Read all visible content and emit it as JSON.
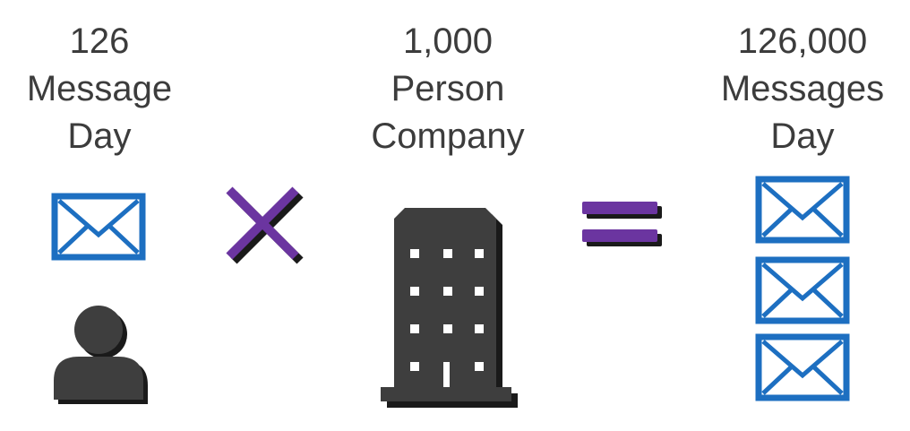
{
  "left": {
    "lines": [
      "126",
      "Message",
      "Day"
    ],
    "icons": [
      "envelope-icon",
      "person-icon"
    ]
  },
  "operator_multiply": {
    "icon": "multiply-icon"
  },
  "middle": {
    "lines": [
      "1,000",
      "Person",
      "Company"
    ],
    "icons": [
      "office-building-icon"
    ]
  },
  "operator_equals": {
    "icon": "equals-icon"
  },
  "right": {
    "lines": [
      "126,000",
      "Messages",
      "Day"
    ],
    "icons": [
      "envelope-icon",
      "envelope-icon",
      "envelope-icon"
    ]
  },
  "colors": {
    "text": "#3c3c3c",
    "envelope": "#1d6fc1",
    "operator": "#6b35a0",
    "dark_fill": "#3e3e3e",
    "shadow": "#1a1a1a"
  }
}
